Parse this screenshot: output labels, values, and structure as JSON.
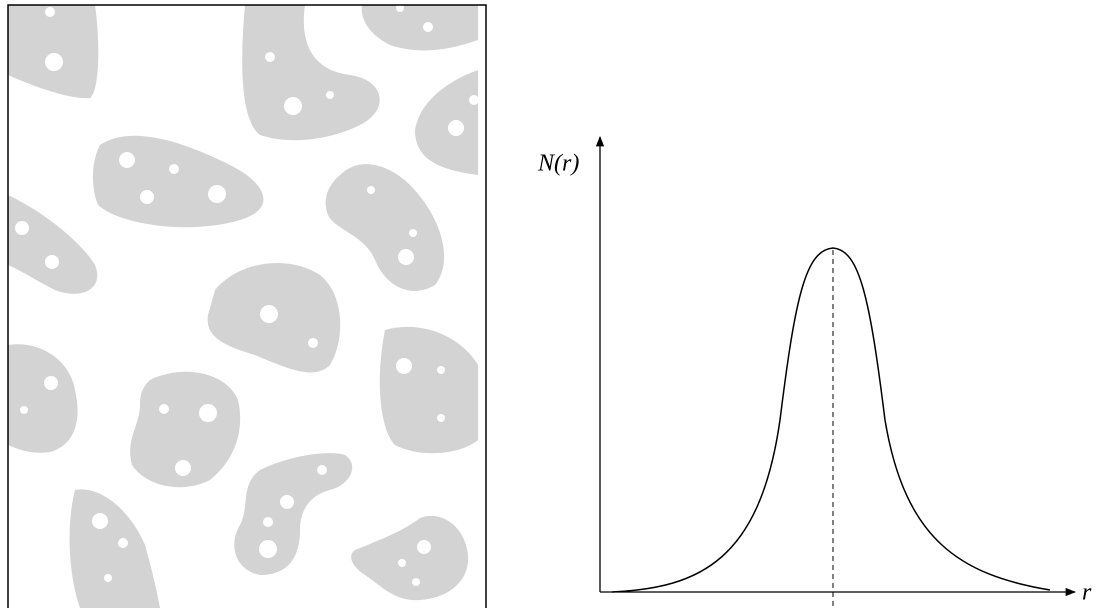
{
  "axis": {
    "y_label": "N(r)",
    "x_label": "r"
  }
}
